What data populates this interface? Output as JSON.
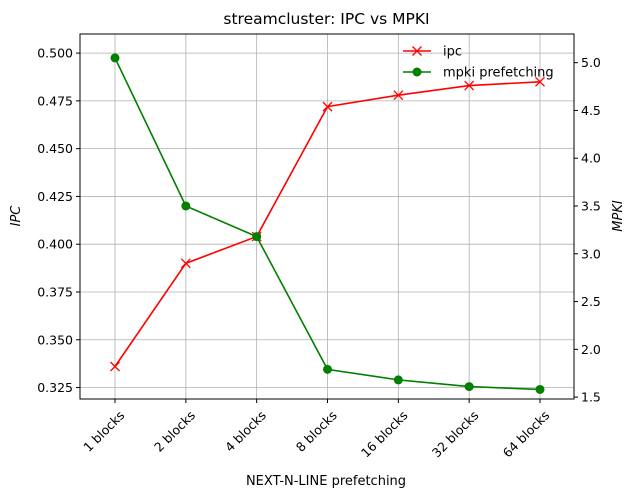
{
  "chart_data": {
    "type": "line",
    "title": "streamcluster: IPC vs MPKI",
    "xlabel": "NEXT-N-LINE prefetching",
    "categories": [
      "1 blocks",
      "2 blocks",
      "4 blocks",
      "8 blocks",
      "16 blocks",
      "32 blocks",
      "64 blocks"
    ],
    "y_left": {
      "label": "IPC",
      "ylim": [
        0.319,
        0.51
      ],
      "ticks": [
        0.325,
        0.35,
        0.375,
        0.4,
        0.425,
        0.45,
        0.475,
        0.5
      ],
      "tick_labels": [
        "0.325",
        "0.350",
        "0.375",
        "0.400",
        "0.425",
        "0.450",
        "0.475",
        "0.500"
      ]
    },
    "y_right": {
      "label": "MPKI",
      "ylim": [
        1.48,
        5.3
      ],
      "ticks": [
        1.5,
        2.0,
        2.5,
        3.0,
        3.5,
        4.0,
        4.5,
        5.0
      ],
      "tick_labels": [
        "1.5",
        "2.0",
        "2.5",
        "3.0",
        "3.5",
        "4.0",
        "4.5",
        "5.0"
      ]
    },
    "series": [
      {
        "name": "ipc",
        "axis": "left",
        "color": "#ff0000",
        "marker": "x",
        "values": [
          0.336,
          0.39,
          0.404,
          0.472,
          0.478,
          0.483,
          0.485
        ]
      },
      {
        "name": "mpki prefetching",
        "axis": "right",
        "color": "#008000",
        "marker": "o",
        "values": [
          5.05,
          3.5,
          3.18,
          1.79,
          1.68,
          1.61,
          1.58
        ]
      }
    ],
    "grid": true,
    "legend_position": "top-right"
  }
}
